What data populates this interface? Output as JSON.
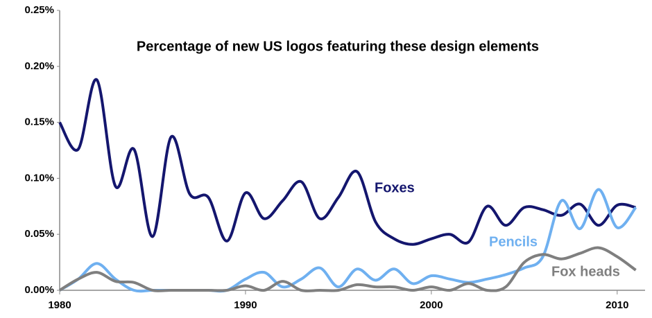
{
  "chart_data": {
    "type": "line",
    "title": "Percentage of new US logos featuring these design elements",
    "x": [
      1980,
      1981,
      1982,
      1983,
      1984,
      1985,
      1986,
      1987,
      1988,
      1989,
      1990,
      1991,
      1992,
      1993,
      1994,
      1995,
      1996,
      1997,
      1998,
      1999,
      2000,
      2001,
      2002,
      2003,
      2004,
      2005,
      2006,
      2007,
      2008,
      2009,
      2010,
      2011
    ],
    "series": [
      {
        "name": "Foxes",
        "color": "#14166e",
        "values": [
          0.15,
          0.126,
          0.188,
          0.093,
          0.126,
          0.048,
          0.137,
          0.086,
          0.083,
          0.044,
          0.087,
          0.064,
          0.08,
          0.097,
          0.064,
          0.083,
          0.106,
          0.061,
          0.046,
          0.041,
          0.046,
          0.05,
          0.043,
          0.075,
          0.058,
          0.074,
          0.072,
          0.067,
          0.077,
          0.058,
          0.076,
          0.074
        ]
      },
      {
        "name": "Pencils",
        "color": "#6fb0f0",
        "values": [
          0,
          0.01,
          0.024,
          0.01,
          0,
          0,
          0,
          0,
          0,
          0,
          0.01,
          0.016,
          0.003,
          0.01,
          0.02,
          0.003,
          0.019,
          0.009,
          0.019,
          0.006,
          0.013,
          0.01,
          0.007,
          0.01,
          0.014,
          0.02,
          0.03,
          0.08,
          0.055,
          0.09,
          0.056,
          0.074
        ]
      },
      {
        "name": "Fox heads",
        "color": "#7f7f7f",
        "values": [
          0,
          0.01,
          0.016,
          0.008,
          0.007,
          0,
          0,
          0,
          0,
          0,
          0.004,
          0,
          0.008,
          0,
          0,
          0,
          0.005,
          0.003,
          0.003,
          0,
          0.003,
          0,
          0.006,
          0,
          0.003,
          0.025,
          0.032,
          0.028,
          0.033,
          0.038,
          0.03,
          0.018
        ]
      }
    ],
    "xlim": [
      1980,
      2011.5
    ],
    "xticks": [
      1980,
      1990,
      2000,
      2010
    ],
    "ylim": [
      0,
      0.25
    ],
    "yticks": [
      {
        "value": 0,
        "label": "0.00%"
      },
      {
        "value": 0.05,
        "label": "0.05%"
      },
      {
        "value": 0.1,
        "label": "0.10%"
      },
      {
        "value": 0.15,
        "label": "0.15%"
      },
      {
        "value": 0.2,
        "label": "0.20%"
      },
      {
        "value": 0.25,
        "label": "0.25%"
      }
    ],
    "grid": false
  }
}
